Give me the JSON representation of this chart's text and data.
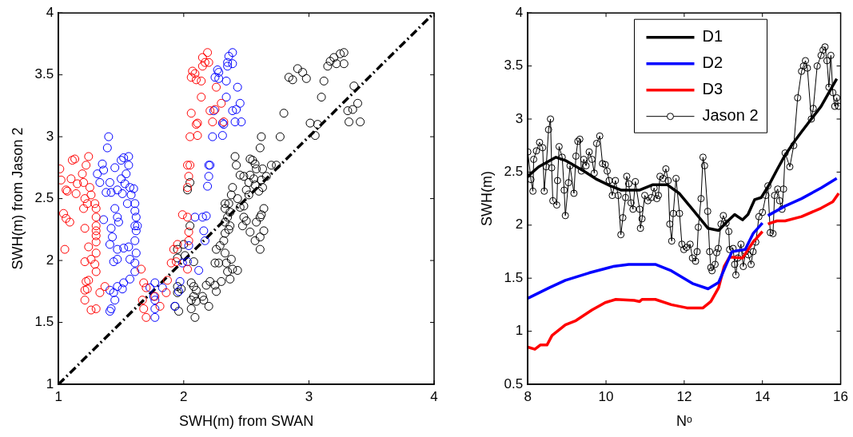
{
  "chart_data": [
    {
      "type": "scatter",
      "xlabel": "SWH(m) from SWAN",
      "ylabel": "SWH(m) from Jason 2",
      "xlim": [
        1,
        4
      ],
      "ylim": [
        1,
        4
      ],
      "xticks": [
        1,
        2,
        3,
        4
      ],
      "yticks": [
        1,
        1.5,
        2,
        2.5,
        3,
        3.5,
        4
      ],
      "legend": false,
      "marker": "circle",
      "series": [
        {
          "color": "#ff0000",
          "x": [
            1.01,
            1.02,
            1.06,
            1.07,
            1.1,
            1.11,
            1.13,
            1.14,
            1.15,
            1.19,
            1.2,
            1.22,
            1.24,
            1.25,
            1.21,
            1.2,
            1.23,
            1.26,
            1.29,
            1.3,
            1.3,
            1.3,
            1.3,
            1.3,
            1.04,
            1.06,
            1.09,
            1.21,
            1.05,
            1.24,
            1.3,
            1.3,
            1.21,
            1.26,
            1.29,
            1.3,
            1.22,
            1.24,
            1.21,
            1.23,
            1.21,
            1.26,
            1.3,
            1.33,
            1.37,
            1.66,
            1.68,
            1.7,
            1.67,
            1.68,
            1.7,
            1.77,
            1.81,
            1.86,
            1.87,
            1.9,
            1.92,
            1.95,
            1.94,
            1.99,
            2.03,
            2.04,
            2.04,
            2.03,
            2.03,
            2.04,
            2.03,
            2.05,
            2.05,
            2.11,
            2.11,
            2.1,
            2.06,
            2.14,
            2.23,
            2.21,
            2.25,
            2.3,
            2.26,
            2.06,
            2.07,
            2.09,
            2.1,
            2.14,
            2.15,
            2.15,
            2.17,
            2.19,
            2.2,
            2.32
          ],
          "values": [
            2.74,
            2.65,
            2.57,
            2.56,
            2.66,
            2.81,
            2.82,
            2.54,
            2.62,
            2.7,
            2.63,
            2.77,
            2.84,
            2.59,
            2.5,
            2.42,
            2.46,
            2.53,
            2.46,
            2.42,
            2.35,
            2.28,
            2.24,
            2.2,
            2.38,
            2.34,
            2.31,
            2.26,
            2.09,
            2.11,
            2.15,
            2.06,
            1.99,
            2.01,
            1.97,
            1.91,
            1.83,
            1.84,
            1.76,
            1.77,
            1.68,
            1.6,
            1.61,
            1.74,
            1.79,
            1.93,
            1.82,
            1.78,
            1.68,
            1.61,
            1.54,
            1.71,
            1.63,
            1.74,
            1.84,
            1.98,
            2.09,
            2.13,
            1.99,
            2.37,
            2.35,
            2.23,
            2.16,
            1.93,
            2.59,
            2.68,
            2.77,
            2.77,
            3.0,
            3.01,
            3.11,
            3.1,
            3.19,
            3.32,
            3.12,
            3.21,
            3.22,
            3.27,
            3.4,
            3.48,
            3.53,
            3.51,
            3.46,
            3.45,
            3.57,
            3.64,
            3.6,
            3.68,
            3.6,
            3.12
          ]
        },
        {
          "color": "#0000ff",
          "x": [
            1.4,
            1.39,
            1.35,
            1.36,
            1.31,
            1.33,
            1.41,
            1.45,
            1.38,
            1.42,
            1.5,
            1.52,
            1.56,
            1.56,
            1.54,
            1.5,
            1.53,
            1.47,
            1.51,
            1.57,
            1.6,
            1.58,
            1.55,
            1.61,
            1.61,
            1.62,
            1.61,
            1.62,
            1.63,
            1.45,
            1.47,
            1.48,
            1.36,
            1.42,
            1.43,
            1.41,
            1.47,
            1.52,
            1.56,
            1.61,
            1.62,
            1.57,
            1.47,
            1.44,
            1.61,
            1.61,
            1.57,
            1.52,
            1.47,
            1.44,
            1.51,
            1.41,
            1.45,
            1.42,
            1.41,
            1.73,
            1.77,
            1.83,
            1.77,
            1.77,
            1.77,
            1.76,
            1.93,
            1.97,
            1.96,
            1.99,
            2.03,
            2.04,
            2.09,
            2.12,
            2.17,
            2.16,
            2.18,
            2.15,
            2.19,
            2.2,
            2.2,
            2.21,
            2.23,
            2.31,
            2.31,
            2.32,
            2.24,
            2.34,
            2.39,
            2.42,
            2.45,
            2.41,
            2.46,
            2.43,
            2.34,
            2.25,
            2.28,
            2.28,
            2.27,
            2.35,
            2.35,
            2.39,
            2.36,
            2.39
          ],
          "values": [
            3.0,
            2.91,
            2.78,
            2.73,
            2.7,
            2.63,
            2.63,
            2.75,
            2.55,
            2.55,
            2.81,
            2.83,
            2.84,
            2.77,
            2.7,
            2.66,
            2.62,
            2.57,
            2.54,
            2.59,
            2.58,
            2.53,
            2.46,
            2.46,
            2.4,
            2.35,
            2.28,
            2.24,
            2.28,
            2.42,
            2.35,
            2.31,
            2.33,
            2.26,
            2.19,
            2.13,
            2.09,
            2.1,
            2.11,
            2.16,
            2.06,
            2.01,
            2.01,
            1.99,
            1.98,
            1.91,
            1.85,
            1.82,
            1.79,
            1.74,
            1.77,
            1.76,
            1.68,
            1.61,
            1.59,
            1.78,
            1.82,
            1.78,
            1.68,
            1.61,
            1.54,
            1.71,
            1.63,
            1.83,
            1.75,
            1.98,
            1.99,
            2.12,
            2.35,
            1.92,
            2.16,
            2.24,
            2.36,
            2.35,
            2.6,
            2.68,
            2.77,
            2.77,
            3.0,
            3.01,
            3.11,
            3.1,
            3.21,
            3.32,
            3.21,
            3.22,
            3.27,
            3.12,
            3.12,
            3.4,
            3.45,
            3.48,
            3.47,
            3.52,
            3.54,
            3.57,
            3.6,
            3.59,
            3.65,
            3.68
          ]
        },
        {
          "color": "#000000",
          "x": [
            2.03,
            2.05,
            2.05,
            2.0,
            2.01,
            1.95,
            1.95,
            2.08,
            1.95,
            1.98,
            1.95,
            1.93,
            1.96,
            2.06,
            2.08,
            2.1,
            2.08,
            2.06,
            2.1,
            2.06,
            2.09,
            2.15,
            2.16,
            2.2,
            2.18,
            2.21,
            2.25,
            2.26,
            2.3,
            2.25,
            2.28,
            2.26,
            2.29,
            2.33,
            2.34,
            2.35,
            2.37,
            2.39,
            2.43,
            2.38,
            2.32,
            2.33,
            2.36,
            2.37,
            2.33,
            2.35,
            2.37,
            2.33,
            2.36,
            2.33,
            2.38,
            2.39,
            2.43,
            2.45,
            2.48,
            2.47,
            2.5,
            2.53,
            2.57,
            2.61,
            2.61,
            2.64,
            2.58,
            2.61,
            2.62,
            2.64,
            2.48,
            2.5,
            2.52,
            2.6,
            2.63,
            2.62,
            2.57,
            2.52,
            2.45,
            2.48,
            2.53,
            2.56,
            2.66,
            2.63,
            2.58,
            2.57,
            2.53,
            2.55,
            2.41,
            2.42,
            2.61,
            2.62,
            2.7,
            2.74,
            2.77,
            2.8,
            2.84,
            2.87,
            2.91,
            2.95,
            2.98,
            3.01,
            3.07,
            3.05,
            3.1,
            3.12,
            3.15,
            3.17,
            3.2,
            3.22,
            3.25,
            3.28,
            3.28,
            3.31,
            3.35,
            3.39,
            3.36,
            3.32,
            3.41
          ],
          "values": [
            2.57,
            2.63,
            2.28,
            2.13,
            2.04,
            2.09,
            2.02,
            1.99,
            1.79,
            1.77,
            1.74,
            1.63,
            1.59,
            1.82,
            1.79,
            1.76,
            1.71,
            1.68,
            1.67,
            1.61,
            1.54,
            1.71,
            1.68,
            1.63,
            1.8,
            1.83,
            1.8,
            1.75,
            1.83,
            1.98,
            1.98,
            2.09,
            2.12,
            2.06,
            1.98,
            1.91,
            1.85,
            1.93,
            1.92,
            2.01,
            2.16,
            2.22,
            2.25,
            2.28,
            2.31,
            2.35,
            2.39,
            2.42,
            2.46,
            2.46,
            2.53,
            2.59,
            2.5,
            2.43,
            2.35,
            2.28,
            2.32,
            2.23,
            2.16,
            2.09,
            2.19,
            2.24,
            2.31,
            2.35,
            2.37,
            2.42,
            2.44,
            2.57,
            2.53,
            2.56,
            2.59,
            2.65,
            2.61,
            2.63,
            2.69,
            2.68,
            2.69,
            2.66,
            2.68,
            2.74,
            2.74,
            2.78,
            2.82,
            2.81,
            2.84,
            2.77,
            2.91,
            3.0,
            2.77,
            2.77,
            3.0,
            3.19,
            3.48,
            3.46,
            3.55,
            3.52,
            3.47,
            3.11,
            3.1,
            3.01,
            3.32,
            3.45,
            3.57,
            3.61,
            3.64,
            3.59,
            3.67,
            3.68,
            3.59,
            3.21,
            3.22,
            3.27,
            3.41,
            3.12,
            3.12
          ]
        },
        {
          "type": "line",
          "color": "#000000",
          "line_style": "dashed",
          "marker": "none",
          "x": [
            1,
            4
          ],
          "values": [
            1,
            4
          ]
        }
      ]
    },
    {
      "type": "line",
      "xlabel": "Nᵒ",
      "ylabel": "SWH(m)",
      "xlim": [
        8,
        16
      ],
      "ylim": [
        0.5,
        4
      ],
      "xticks": [
        8,
        10,
        12,
        14,
        16
      ],
      "yticks": [
        0.5,
        1,
        1.5,
        2,
        2.5,
        3,
        3.5,
        4
      ],
      "legend": "top right",
      "marker": "none",
      "series": [
        {
          "name": "D1",
          "color": "#000000",
          "x": [
            8.0,
            8.28,
            8.72,
            8.96,
            9.43,
            9.77,
            10.11,
            10.38,
            10.86,
            11.19,
            11.57,
            11.87,
            12.21,
            12.61,
            12.88,
            13.09,
            13.29,
            13.49,
            13.63,
            13.8,
            13.97,
            14.17,
            14.37,
            14.58,
            14.8,
            15.0,
            15.5,
            15.9
          ],
          "values": [
            2.46,
            2.55,
            2.64,
            2.61,
            2.51,
            2.43,
            2.37,
            2.33,
            2.33,
            2.38,
            2.38,
            2.3,
            2.15,
            1.97,
            1.95,
            2.03,
            2.1,
            2.05,
            2.1,
            2.24,
            2.26,
            2.38,
            2.52,
            2.66,
            2.78,
            2.88,
            3.12,
            3.38
          ]
        },
        {
          "name": "D2",
          "color": "#0000ff",
          "x": [
            8.0,
            8.55,
            8.96,
            9.57,
            10.18,
            10.58,
            11.26,
            11.67,
            12.21,
            12.61,
            12.88,
            13.09,
            13.22,
            13.56,
            13.76,
            14.0,
            14.07,
            14.14,
            14.58,
            15.0,
            15.5,
            15.9
          ],
          "values": [
            1.31,
            1.41,
            1.48,
            1.55,
            1.61,
            1.63,
            1.63,
            1.57,
            1.45,
            1.4,
            1.46,
            1.64,
            1.75,
            1.77,
            1.92,
            2.02,
            null,
            2.09,
            2.18,
            2.25,
            2.35,
            2.44
          ]
        },
        {
          "name": "D3",
          "color": "#ff0000",
          "x": [
            8.0,
            8.18,
            8.32,
            8.49,
            8.62,
            8.96,
            9.23,
            9.64,
            9.98,
            10.25,
            10.72,
            10.86,
            10.92,
            11.26,
            11.67,
            12.07,
            12.48,
            12.68,
            12.88,
            13.02,
            13.16,
            13.49,
            13.76,
            14.0,
            14.07,
            14.14,
            14.37,
            14.58,
            15.0,
            15.5,
            15.8,
            15.95
          ],
          "values": [
            0.85,
            0.83,
            0.87,
            0.87,
            0.96,
            1.06,
            1.1,
            1.2,
            1.27,
            1.3,
            1.29,
            1.28,
            1.3,
            1.3,
            1.25,
            1.22,
            1.22,
            1.28,
            1.41,
            1.61,
            1.7,
            1.69,
            1.84,
            1.94,
            null,
            2.01,
            2.04,
            2.04,
            2.08,
            2.16,
            2.22,
            2.3
          ]
        },
        {
          "name": "Jason 2",
          "color": "#000000",
          "marker": "circle",
          "x": [
            8.0,
            8.08,
            8.13,
            8.15,
            8.22,
            8.3,
            8.38,
            8.42,
            8.47,
            8.53,
            8.58,
            8.61,
            8.64,
            8.74,
            8.76,
            8.8,
            8.88,
            8.93,
            8.96,
            9.04,
            9.08,
            9.18,
            9.23,
            9.28,
            9.33,
            9.37,
            9.43,
            9.49,
            9.57,
            9.64,
            9.7,
            9.76,
            9.84,
            9.91,
            9.98,
            10.03,
            10.08,
            10.16,
            10.24,
            10.31,
            10.38,
            10.43,
            10.5,
            10.53,
            10.58,
            10.64,
            10.69,
            10.75,
            10.86,
            10.88,
            10.92,
            10.99,
            11.07,
            11.16,
            11.23,
            11.3,
            11.34,
            11.38,
            11.46,
            11.53,
            11.59,
            11.63,
            11.68,
            11.72,
            11.79,
            11.88,
            11.94,
            11.99,
            12.06,
            12.15,
            12.21,
            12.29,
            12.33,
            12.36,
            12.43,
            12.48,
            12.52,
            12.6,
            12.65,
            12.68,
            12.71,
            12.79,
            12.83,
            12.87,
            12.94,
            13.0,
            13.07,
            13.14,
            13.16,
            13.25,
            13.29,
            13.32,
            13.37,
            13.45,
            13.51,
            13.57,
            13.64,
            13.71,
            13.76,
            13.83,
            13.91,
            14.0,
            14.09,
            14.14,
            14.2,
            14.27,
            14.31,
            14.39,
            14.44,
            14.5,
            14.54,
            14.58,
            14.7,
            14.8,
            14.9,
            15.0,
            15.05,
            15.1,
            15.15,
            15.25,
            15.3,
            15.4,
            15.5,
            15.55,
            15.6,
            15.65,
            15.7,
            15.75,
            15.8,
            15.85,
            15.9,
            15.95
          ],
          "values": [
            2.69,
            2.43,
            2.32,
            2.62,
            2.7,
            2.78,
            2.73,
            2.32,
            2.55,
            2.9,
            3.0,
            2.54,
            2.23,
            2.19,
            2.42,
            2.74,
            2.64,
            2.33,
            2.09,
            2.4,
            2.56,
            2.3,
            2.65,
            2.79,
            2.81,
            2.51,
            2.62,
            2.56,
            2.69,
            2.62,
            2.49,
            2.77,
            2.84,
            2.58,
            2.57,
            2.51,
            2.42,
            2.28,
            2.42,
            2.28,
            1.91,
            2.07,
            2.26,
            2.46,
            2.39,
            2.21,
            2.15,
            2.41,
            2.15,
            1.97,
            2.06,
            2.28,
            2.23,
            2.26,
            2.35,
            2.25,
            2.28,
            2.46,
            2.44,
            2.53,
            2.42,
            2.01,
            1.85,
            2.11,
            2.44,
            2.11,
            1.82,
            1.77,
            1.79,
            1.82,
            1.69,
            1.66,
            1.75,
            1.98,
            2.25,
            2.64,
            2.56,
            2.13,
            1.75,
            1.6,
            1.57,
            1.63,
            1.74,
            1.78,
            2.01,
            2.09,
            2.02,
            1.94,
            1.77,
            1.78,
            1.63,
            1.53,
            1.69,
            1.82,
            1.61,
            1.75,
            1.72,
            1.63,
            1.75,
            1.84,
            2.08,
            2.12,
            2.28,
            2.37,
            1.93,
            1.92,
            2.28,
            2.34,
            2.23,
            2.15,
            2.34,
            2.68,
            2.55,
            2.75,
            3.2,
            3.45,
            3.5,
            3.55,
            3.48,
            3.0,
            3.1,
            3.5,
            3.6,
            3.65,
            3.68,
            3.55,
            3.3,
            3.6,
            3.25,
            3.12,
            3.2,
            3.12
          ]
        }
      ]
    }
  ]
}
